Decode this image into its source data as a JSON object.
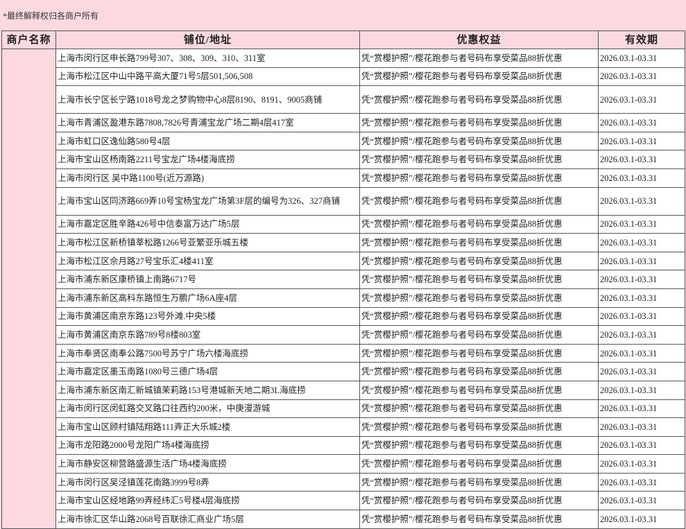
{
  "note": "*最终解释权归各商户所有",
  "columns": [
    "商户名称",
    "铺位/地址",
    "优惠权益",
    "有效期"
  ],
  "merchant": "",
  "benefit": "凭“赏樱护照”/樱花跑参与者号码布享受菜品88折优惠",
  "validity": "2026.03.1-03.31",
  "rows": [
    "上海市闵行区申长路799号307、308、309、310、311室",
    "上海市松江区中山中路平高大厦71号5层501,506,508",
    "上海市长宁区长宁路1018号龙之梦购物中心8层8190、8191、9005商铺",
    "上海市青浦区盈港东路7808,7826号青浦宝龙广场二期4层417室",
    "上海市虹口区逸仙路580号4层",
    "上海市宝山区杨南路2211号宝龙广场4楼海底捞",
    "上海市闵行区 吴中路1100号(近万源路)",
    "上海市宝山区同济路669弄10号宝杨宝龙广场第3F层的编号为326、327商铺",
    "上海市嘉定区胜辛路426号中信泰富万达广场5层",
    "上海市松江区新桥镇莘松路1266号亚繁亚乐城五楼",
    "上海市松江区佘月路27号宝乐汇4楼411室",
    "上海市浦东新区康桥镇上南路6717号",
    "上海市浦东新区高科东路恒生万鹏广场6A座4层",
    "上海市黄浦区南京东路123号外滩.中央5楼",
    "上海市黄浦区南京东路789号8楼803室",
    "上海市奉贤区南奉公路7500号苏宁广场六楼海底捞",
    "上海市嘉定区墨玉南路1080号三德广场4层",
    "上海市浦东新区南汇新城镇茉莉路153号港城新天地二期3L海底捞",
    "上海市闵行区闵虹路交叉路口往西约200米，中庚漫游城",
    "上海市宝山区顾村镇陆翔路111弄正大乐城2楼",
    "上海市龙阳路2000号龙阳广场4楼海底捞",
    "上海市静安区柳营路盛源生活广场4楼海底捞",
    "上海市闵行区吴泾镇莲花南路3999号8弄",
    "上海市宝山区经地路99弄经纬汇5号楼4层海底捞",
    "上海市徐汇区华山路2068号百联徐汇商业广场5层"
  ]
}
